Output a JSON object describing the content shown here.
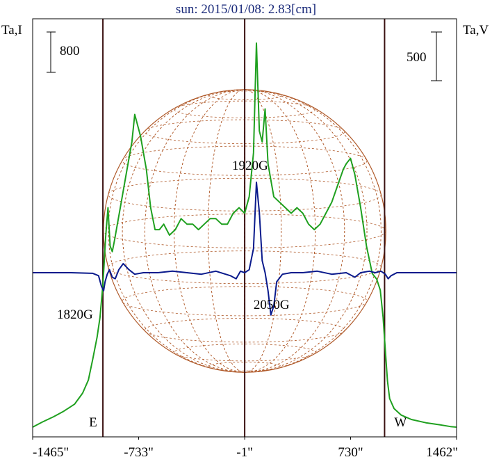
{
  "chart_data": {
    "type": "line",
    "title": "sun: 2015/01/08: 2.83[cm]",
    "y_left_label": "Ta,I",
    "y_right_label": "Ta,V",
    "scale_left": "800",
    "scale_right": "500",
    "xlim": [
      -1465,
      1462
    ],
    "xticks": [
      {
        "value": -1465,
        "label": "-1465\""
      },
      {
        "value": -733,
        "label": "-733\""
      },
      {
        "value": -1,
        "label": "-1\""
      },
      {
        "value": 730,
        "label": "730\""
      },
      {
        "value": 1462,
        "label": "1462\""
      }
    ],
    "limb_markers": [
      {
        "value": -980,
        "label": "E"
      },
      {
        "value": 965,
        "label": "W"
      }
    ],
    "center_marker": -1,
    "annotations": [
      {
        "label": "1920G",
        "x": 80,
        "series": "I"
      },
      {
        "label": "1820G",
        "x": -985,
        "series": "V"
      },
      {
        "label": "2050G",
        "x": 180,
        "series": "V"
      }
    ],
    "disk": {
      "radius_arcsec": 975,
      "color": "#b05a2a"
    },
    "series": [
      {
        "id": "I",
        "color": "#1fa01f",
        "x": [
          -1465,
          -1400,
          -1320,
          -1250,
          -1175,
          -1120,
          -1080,
          -1050,
          -1020,
          -1000,
          -980,
          -960,
          -945,
          -930,
          -915,
          -900,
          -880,
          -860,
          -820,
          -780,
          -760,
          -720,
          -680,
          -650,
          -620,
          -590,
          -560,
          -520,
          -480,
          -440,
          -400,
          -360,
          -320,
          -280,
          -240,
          -200,
          -160,
          -120,
          -80,
          -40,
          -1,
          30,
          60,
          80,
          100,
          120,
          140,
          160,
          200,
          240,
          280,
          320,
          360,
          400,
          440,
          480,
          520,
          560,
          600,
          640,
          680,
          700,
          730,
          760,
          800,
          840,
          880,
          910,
          935,
          955,
          970,
          985,
          1000,
          1030,
          1080,
          1150,
          1250,
          1350,
          1420,
          1462
        ],
        "y": [
          0,
          45,
          95,
          145,
          210,
          310,
          430,
          620,
          820,
          1000,
          1300,
          1750,
          2000,
          1650,
          1600,
          1700,
          1850,
          2000,
          2300,
          2600,
          2850,
          2650,
          2350,
          2000,
          1800,
          1800,
          1850,
          1750,
          1800,
          1900,
          1850,
          1850,
          1800,
          1850,
          1900,
          1900,
          1850,
          1850,
          1950,
          2000,
          1950,
          2100,
          2500,
          3500,
          2700,
          2600,
          2900,
          2400,
          2100,
          2050,
          2000,
          1950,
          2000,
          1950,
          1850,
          1800,
          1850,
          1950,
          2050,
          2200,
          2350,
          2400,
          2450,
          2300,
          2000,
          1650,
          1400,
          1350,
          1250,
          1000,
          700,
          420,
          260,
          170,
          110,
          70,
          40,
          20,
          5,
          0
        ]
      },
      {
        "id": "V",
        "color": "#0a1a8c",
        "x": [
          -1465,
          -1200,
          -1050,
          -1010,
          -990,
          -975,
          -965,
          -950,
          -935,
          -915,
          -895,
          -870,
          -840,
          -800,
          -760,
          -700,
          -600,
          -500,
          -400,
          -300,
          -200,
          -100,
          -60,
          -30,
          -1,
          30,
          60,
          80,
          100,
          120,
          140,
          160,
          180,
          200,
          220,
          260,
          320,
          400,
          500,
          600,
          700,
          760,
          800,
          860,
          900,
          940,
          970,
          990,
          1010,
          1050,
          1200,
          1462
        ],
        "y": [
          0,
          0,
          -2,
          -10,
          -45,
          -60,
          -30,
          -5,
          10,
          -15,
          -20,
          10,
          30,
          10,
          -5,
          0,
          0,
          5,
          0,
          -5,
          5,
          -10,
          -20,
          5,
          0,
          10,
          80,
          300,
          200,
          40,
          0,
          -60,
          -140,
          -110,
          -30,
          -5,
          0,
          0,
          5,
          -5,
          0,
          -15,
          0,
          5,
          0,
          5,
          -5,
          -20,
          -10,
          0,
          0,
          0
        ]
      }
    ]
  }
}
